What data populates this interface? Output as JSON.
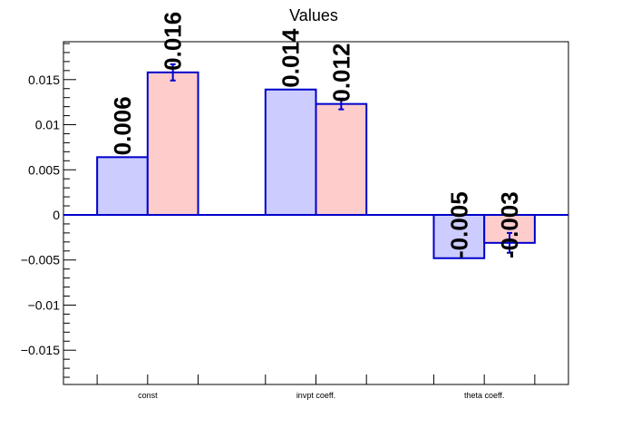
{
  "chart_data": {
    "type": "bar",
    "title": "Values",
    "categories": [
      "const",
      "invpt coeff.",
      "theta coeff."
    ],
    "series": [
      {
        "color": "#ccccff",
        "edge_color": "#0000cc",
        "values": [
          0.0064,
          0.0139,
          -0.0048
        ],
        "labels": [
          "0.006",
          "0.014",
          "-0.005"
        ]
      },
      {
        "color": "#ffcccc",
        "edge_color": "#0000cc",
        "values": [
          0.0158,
          0.0123,
          -0.0031
        ],
        "errors": [
          0.0009,
          0.0006,
          0.0011
        ],
        "labels": [
          "0.016",
          "0.012",
          "-0.003"
        ]
      }
    ],
    "ylim": [
      -0.0188,
      0.0192
    ],
    "yticks": [
      -0.015,
      -0.01,
      -0.005,
      0,
      0.005,
      0.01,
      0.015
    ],
    "ytick_labels": [
      "−0.015",
      "−0.01",
      "−0.005",
      "0",
      "0.005",
      "0.01",
      "0.015"
    ],
    "grid": false,
    "legend": "none"
  }
}
